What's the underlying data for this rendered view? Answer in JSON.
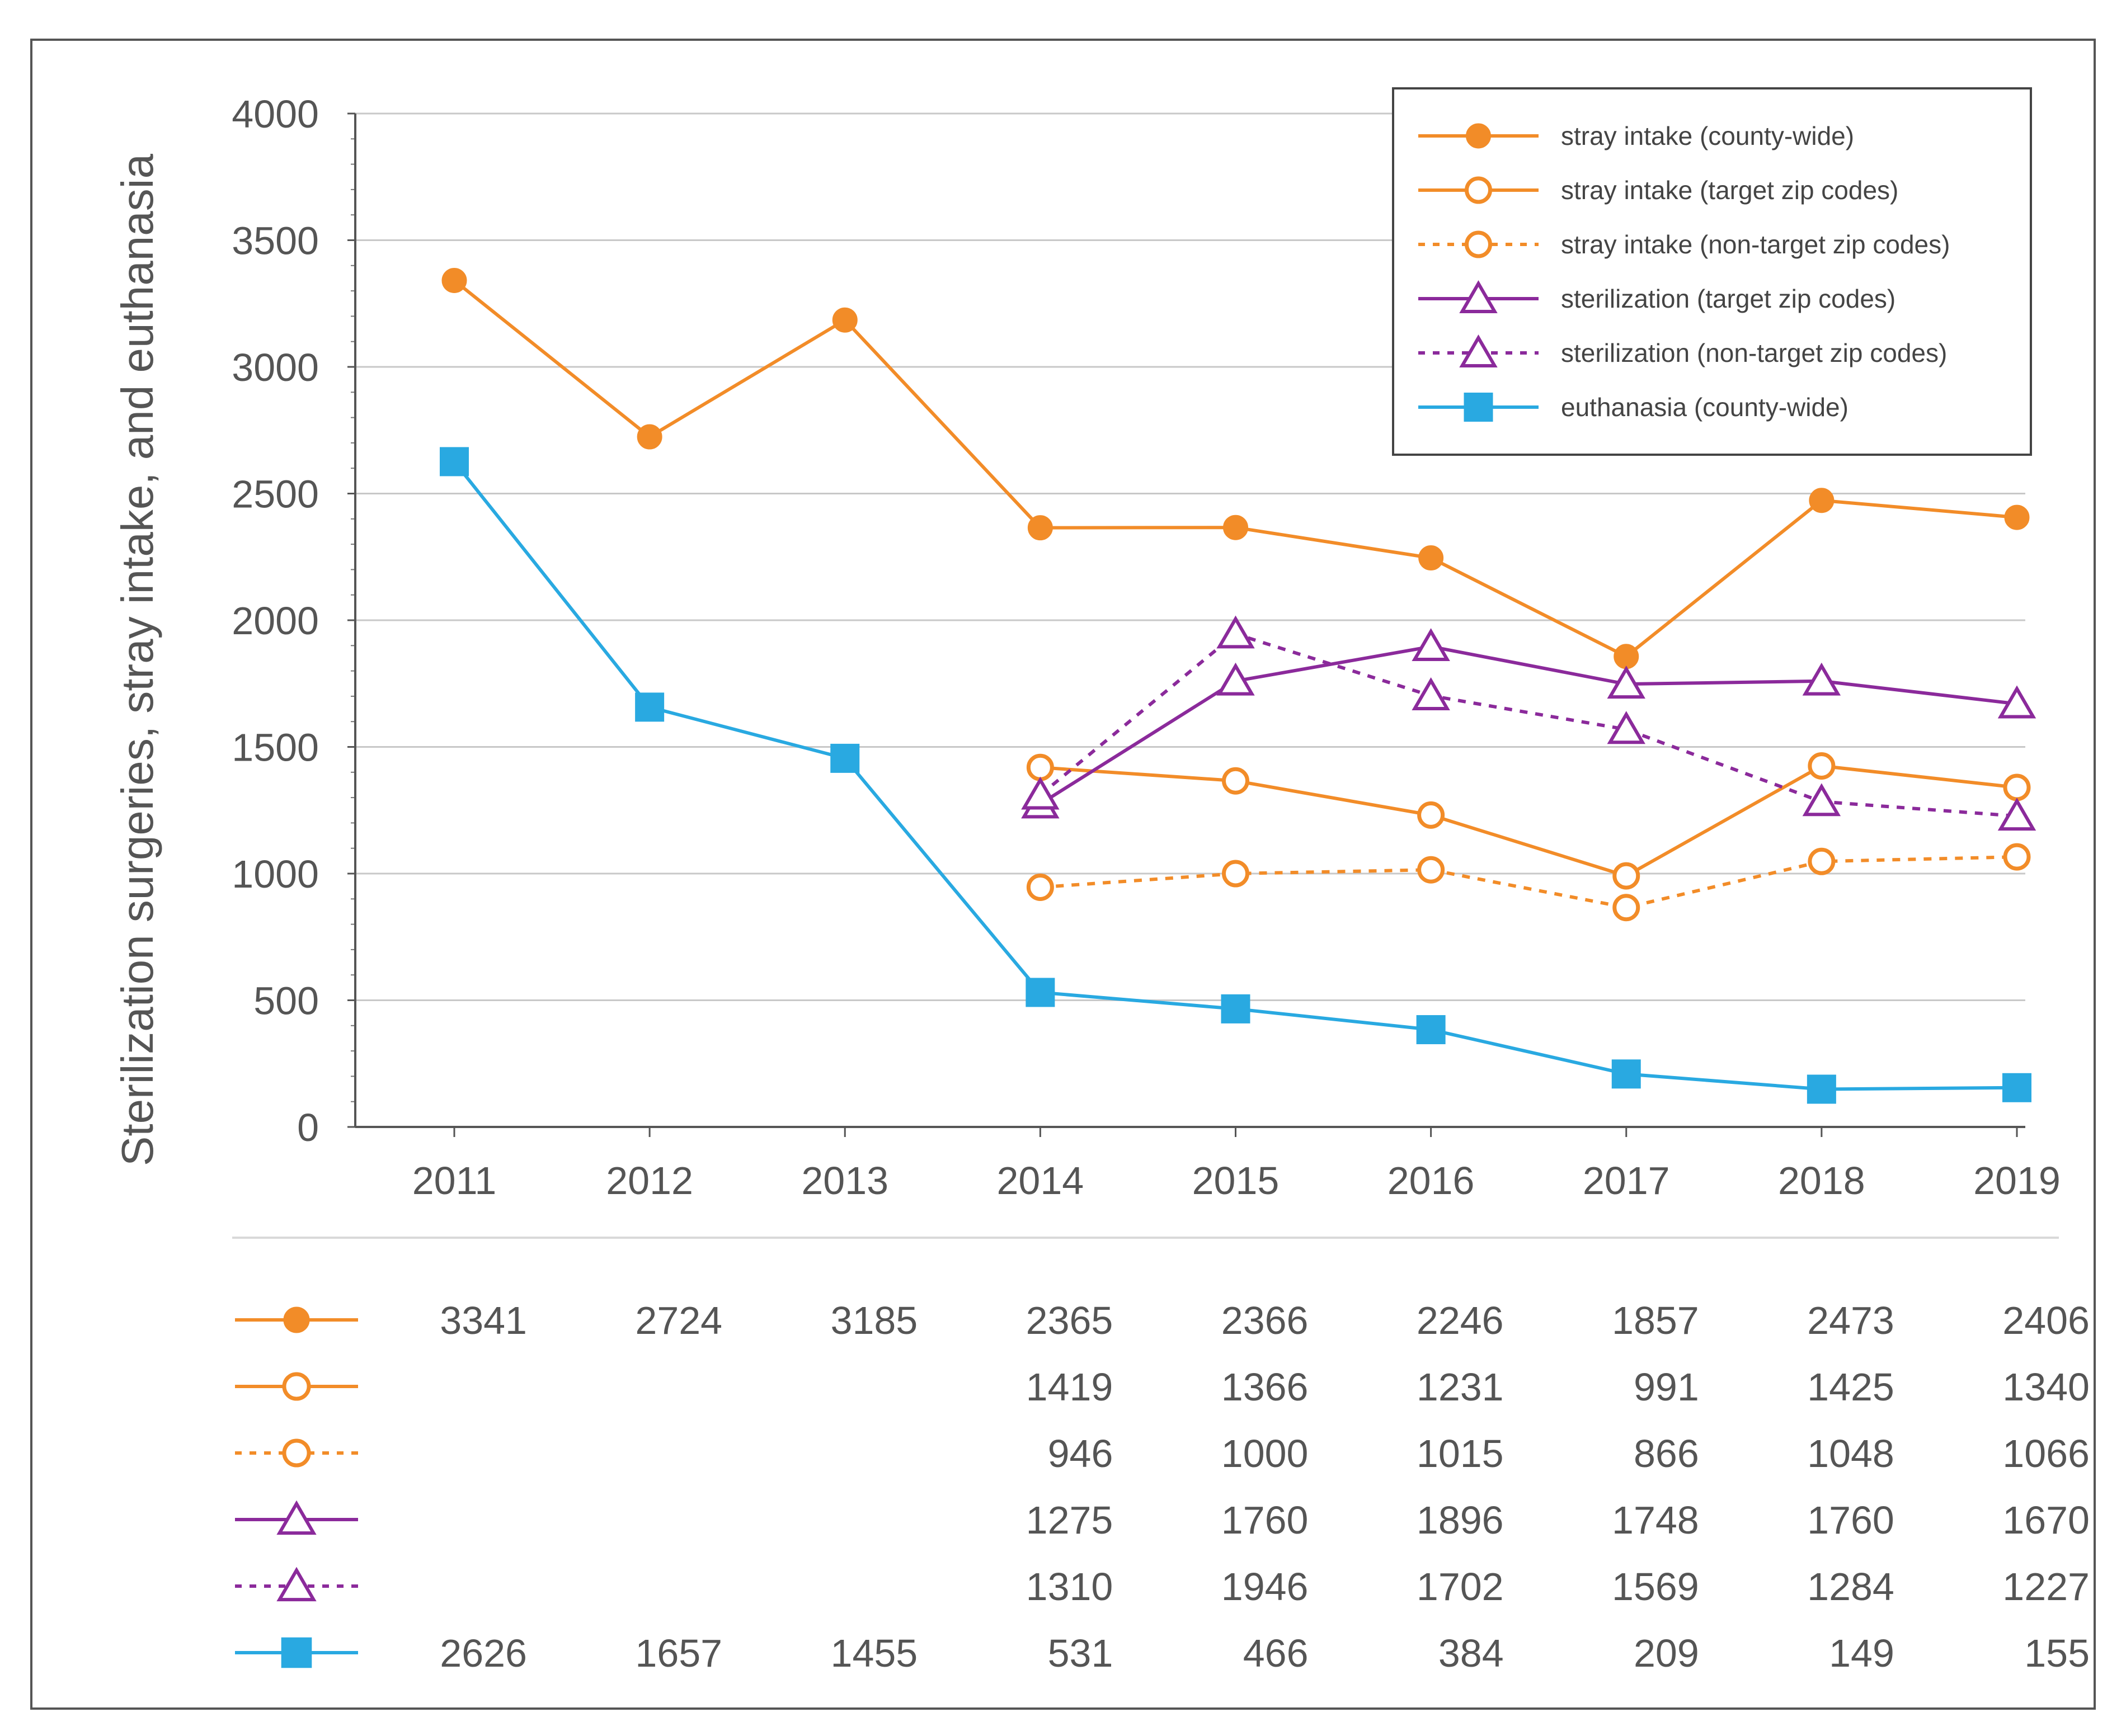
{
  "chart_data": {
    "type": "line",
    "title": "",
    "xlabel": "",
    "ylabel": "Sterilization surgeries, stray intake, and euthanasia",
    "categories": [
      "2011",
      "2012",
      "2013",
      "2014",
      "2015",
      "2016",
      "2017",
      "2018",
      "2019"
    ],
    "ylim": [
      0,
      4000
    ],
    "yticks": [
      0,
      500,
      1000,
      1500,
      2000,
      2500,
      3000,
      3500,
      4000
    ],
    "grid": true,
    "legend_position": "top-right",
    "series": [
      {
        "name": "stray intake (county-wide)",
        "color": "#F28C28",
        "dash": "solid",
        "marker": "filled-circle",
        "values": [
          3341,
          2724,
          3185,
          2365,
          2366,
          2246,
          1857,
          2473,
          2406
        ]
      },
      {
        "name": "stray intake (target zip codes)",
        "color": "#F28C28",
        "dash": "solid",
        "marker": "open-circle",
        "values": [
          null,
          null,
          null,
          1419,
          1366,
          1231,
          991,
          1425,
          1340
        ]
      },
      {
        "name": "stray intake (non-target zip codes)",
        "color": "#F28C28",
        "dash": "dashed",
        "marker": "open-circle",
        "values": [
          null,
          null,
          null,
          946,
          1000,
          1015,
          866,
          1048,
          1066
        ]
      },
      {
        "name": "sterilization (target zip codes)",
        "color": "#8B2A9B",
        "dash": "solid",
        "marker": "open-triangle",
        "values": [
          null,
          null,
          null,
          1275,
          1760,
          1896,
          1748,
          1760,
          1670
        ]
      },
      {
        "name": "sterilization (non-target zip codes)",
        "color": "#8B2A9B",
        "dash": "dashed",
        "marker": "open-triangle",
        "values": [
          null,
          null,
          null,
          1310,
          1946,
          1702,
          1569,
          1284,
          1227
        ]
      },
      {
        "name": "euthanasia (county-wide)",
        "color": "#29A9E1",
        "dash": "solid",
        "marker": "filled-square",
        "values": [
          2626,
          1657,
          1455,
          531,
          466,
          384,
          209,
          149,
          155
        ]
      }
    ]
  }
}
